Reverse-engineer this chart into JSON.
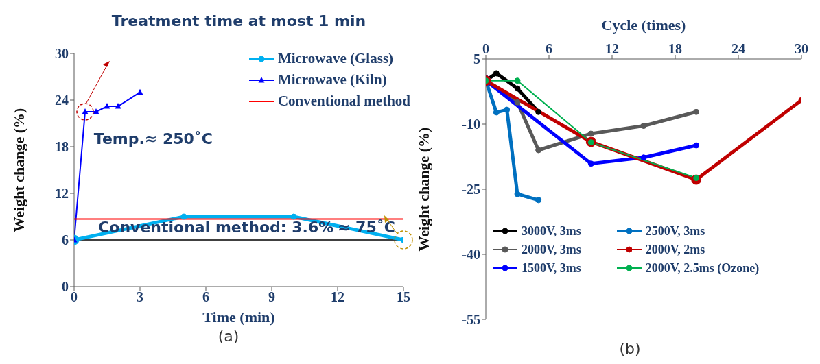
{
  "chart_data": [
    {
      "type": "line",
      "title": "Treatment time at most 1 min",
      "xlabel": "Time (min)",
      "ylabel": "Weight change (%)",
      "xlim": [
        0,
        15
      ],
      "ylim": [
        0,
        30
      ],
      "xticks": [
        0,
        3,
        6,
        9,
        12,
        15
      ],
      "yticks": [
        0,
        6,
        12,
        18,
        24,
        30
      ],
      "grid": false,
      "legend": "top right",
      "series": [
        {
          "name": "Microwave (Glass)",
          "color": "#00b0f0",
          "marker": "circle",
          "x": [
            0,
            5,
            10,
            15
          ],
          "values": [
            6,
            9,
            9,
            6
          ]
        },
        {
          "name": "Microwave (Kiln)",
          "color": "#0000ff",
          "marker": "triangle",
          "x": [
            0,
            0.5,
            1,
            1.5,
            2,
            3
          ],
          "values": [
            6,
            22.5,
            22.5,
            23.2,
            23.2,
            25
          ]
        },
        {
          "name": "Conventional method",
          "color": "#ff0000",
          "marker": "none",
          "x": [
            0,
            15
          ],
          "values": [
            8.7,
            8.7
          ]
        }
      ],
      "ref_lines": [
        {
          "axis": "y",
          "value": 6,
          "color": "#000000"
        }
      ],
      "annotations": [
        "Temp.≈ 250˚C",
        "Conventional method: 3.6%",
        "≈ 75˚C",
        "(a)"
      ]
    },
    {
      "type": "line",
      "xlabel": "Cycle (times)",
      "ylabel": "Weight change (%)",
      "xlim": [
        0,
        30
      ],
      "ylim": [
        -55,
        5
      ],
      "xticks": [
        0,
        6,
        12,
        18,
        24,
        30
      ],
      "yticks": [
        -55,
        -40,
        -25,
        -10,
        5
      ],
      "grid": false,
      "legend": "bottom left",
      "marker": "circle",
      "series": [
        {
          "name": "3000V, 3ms",
          "color": "#000000",
          "x": [
            0,
            1,
            3,
            5
          ],
          "values": [
            0,
            1.7,
            -1.8,
            -7.2
          ]
        },
        {
          "name": "2000V, 3ms",
          "color": "#595959",
          "x": [
            0,
            3,
            5,
            10,
            15,
            20
          ],
          "values": [
            0,
            -5,
            -16,
            -12.2,
            -10.4,
            -7.2
          ]
        },
        {
          "name": "1500V, 3ms",
          "color": "#0000ff",
          "x": [
            0,
            10,
            15,
            20
          ],
          "values": [
            0,
            -19.1,
            -17.7,
            -14.9
          ]
        },
        {
          "name": "2500V, 3ms",
          "color": "#0070c0",
          "x": [
            0,
            1,
            2,
            3,
            5
          ],
          "values": [
            0,
            -7.3,
            -6.7,
            -26.1,
            -27.5
          ]
        },
        {
          "name": "2000V, 2ms",
          "color": "#c00000",
          "x": [
            0,
            10,
            20,
            30
          ],
          "values": [
            0,
            -14.1,
            -22.8,
            -4.5
          ]
        },
        {
          "name": "2000V, 2.5ms (Ozone)",
          "color": "#00b050",
          "x": [
            0,
            3,
            10,
            20
          ],
          "values": [
            0,
            0,
            -14.2,
            -22.4
          ]
        }
      ],
      "annotations": [
        "(b)"
      ]
    }
  ]
}
